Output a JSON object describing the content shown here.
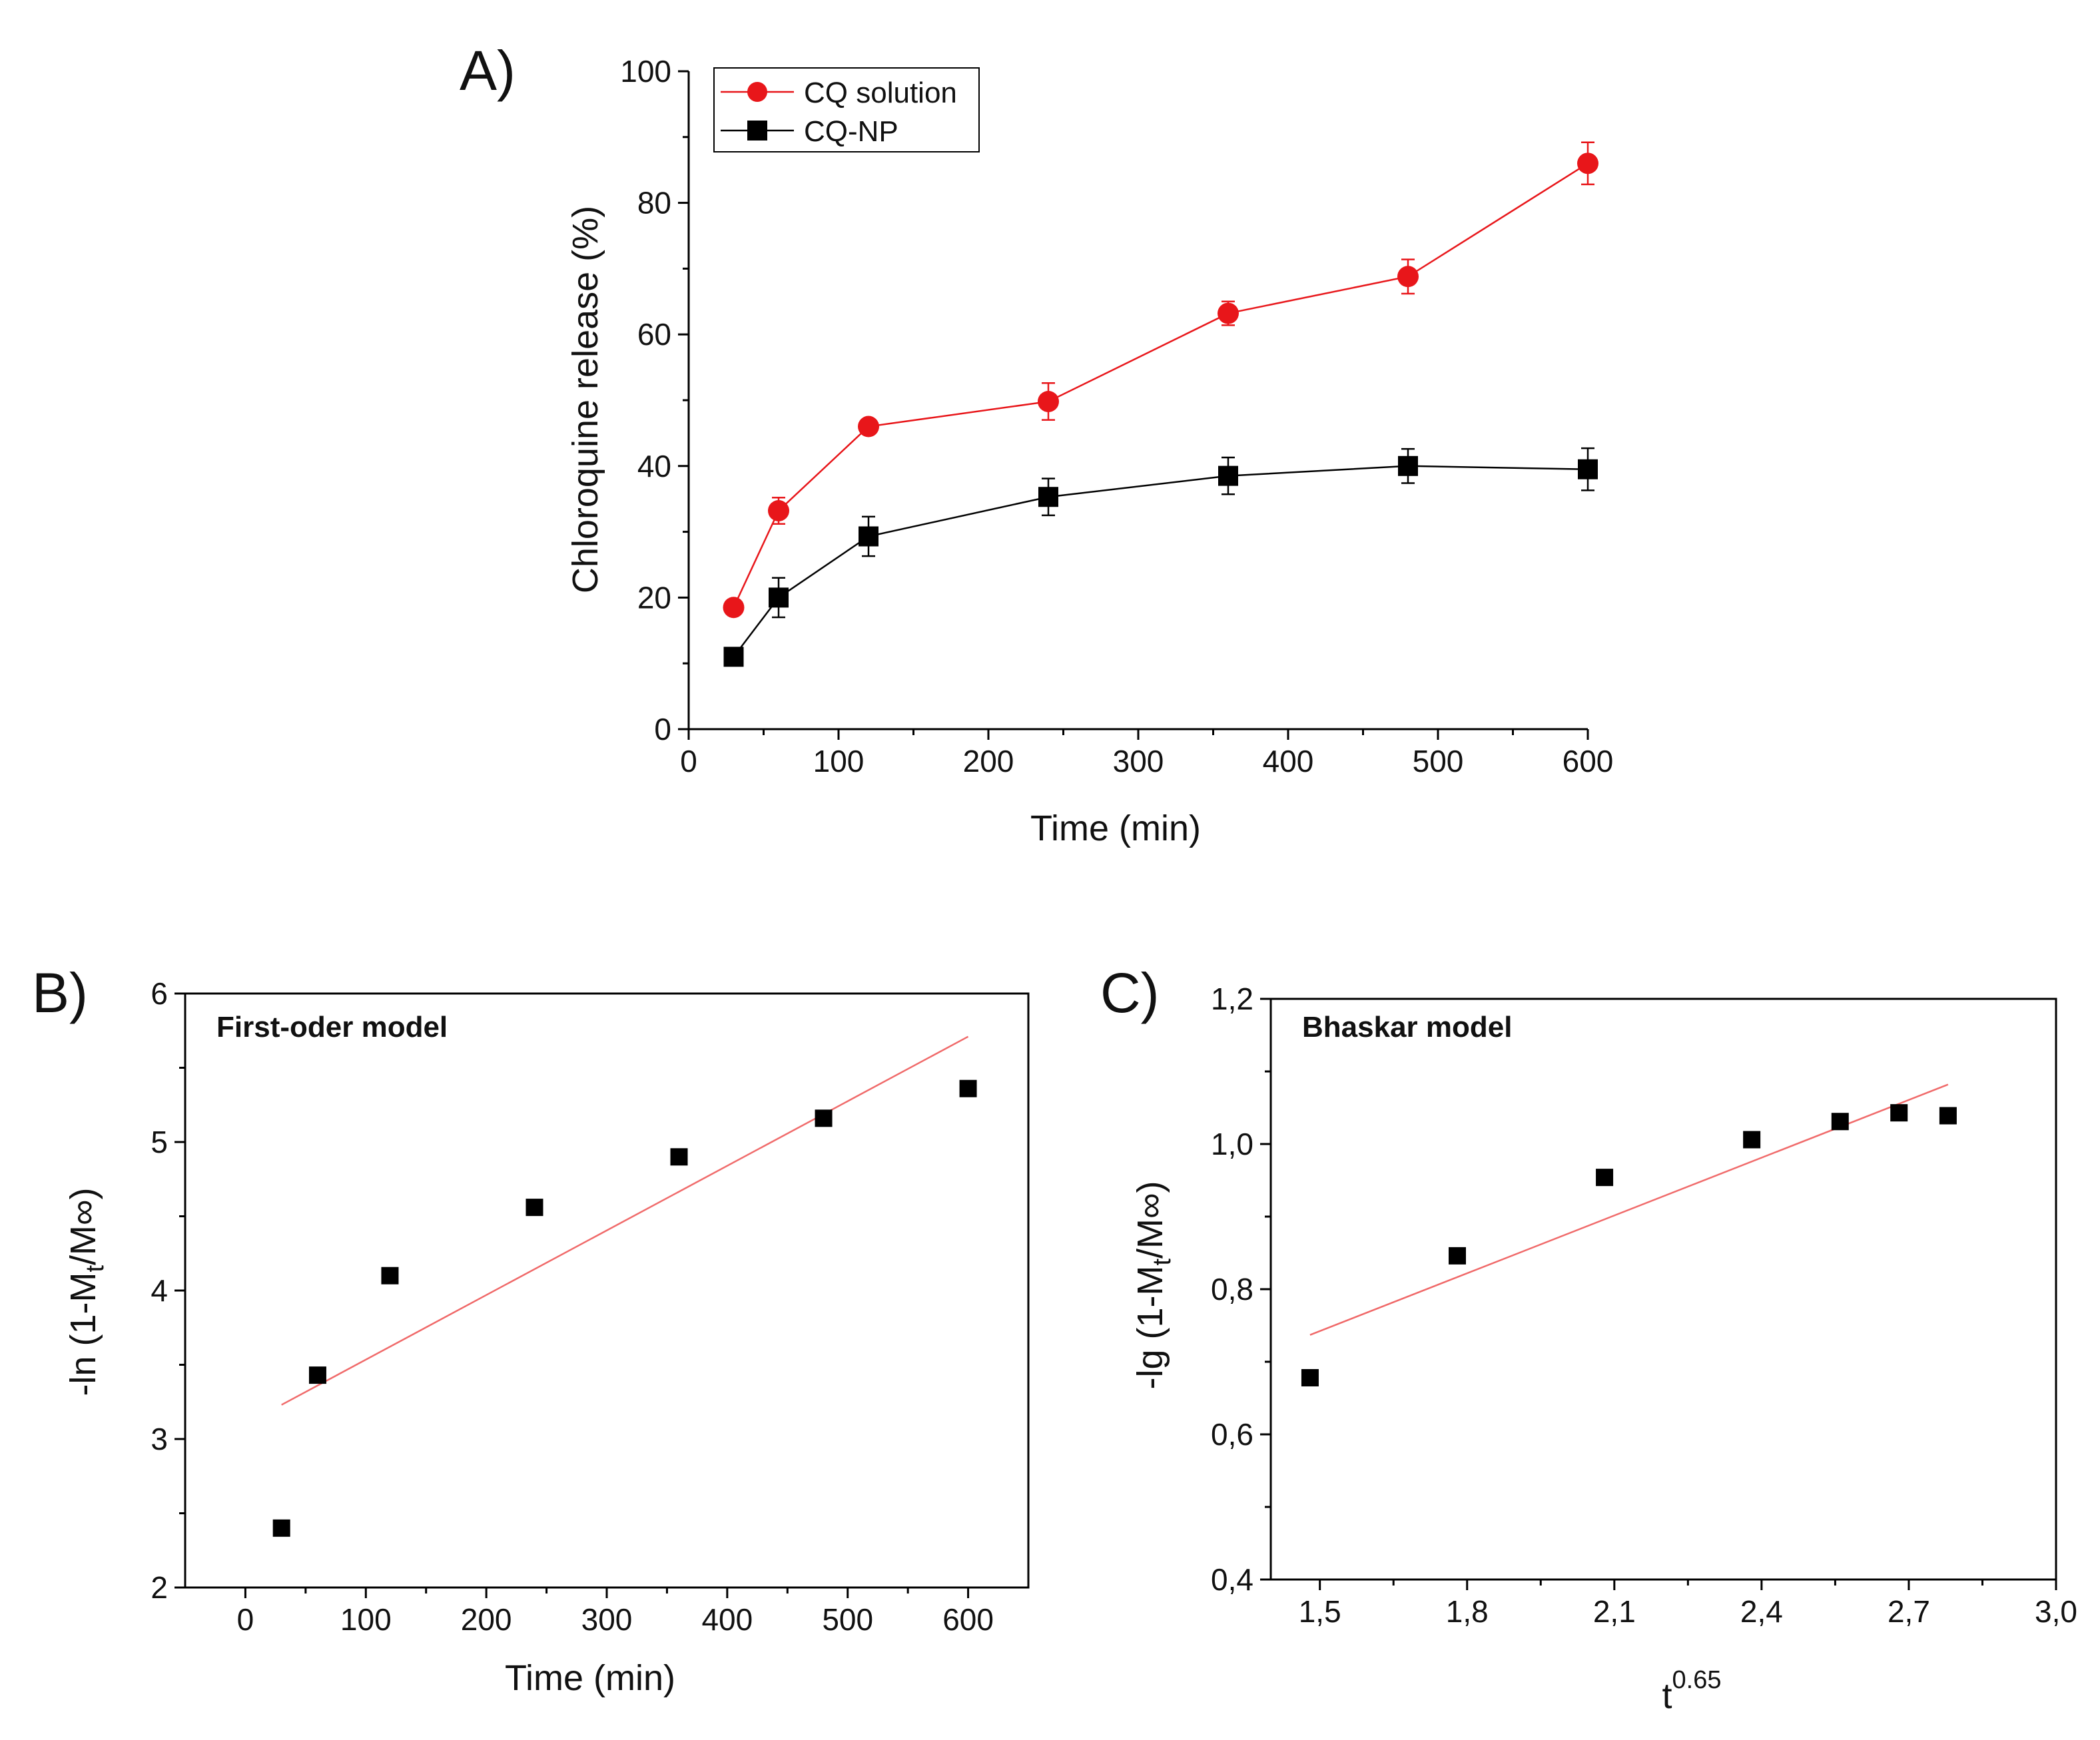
{
  "figure": {
    "panels": [
      "A)",
      "B)",
      "C)"
    ]
  },
  "chart_data": [
    {
      "panel": "A)",
      "type": "line",
      "title": "",
      "xlabel": "Time (min)",
      "ylabel": "Chloroquine release (%)",
      "xlim": [
        0,
        600
      ],
      "ylim": [
        0,
        100
      ],
      "xticks": [
        0,
        100,
        200,
        300,
        400,
        500,
        600
      ],
      "yticks": [
        0,
        20,
        40,
        60,
        80,
        100
      ],
      "xtick_labels": [
        "0",
        "100",
        "200",
        "300",
        "400",
        "500",
        "600"
      ],
      "ytick_labels": [
        "0",
        "20",
        "40",
        "60",
        "80",
        "100"
      ],
      "x": [
        30,
        60,
        120,
        240,
        360,
        480,
        600
      ],
      "legend_position": "top-left",
      "series": [
        {
          "name": "CQ solution",
          "color": "#e8161a",
          "marker": "circle",
          "values": [
            18.5,
            33.2,
            46.0,
            49.8,
            63.2,
            68.8,
            86.0
          ],
          "errors": [
            0.8,
            2.0,
            1.0,
            2.8,
            1.8,
            2.6,
            3.2
          ]
        },
        {
          "name": "CQ-NP",
          "color": "#000000",
          "marker": "square",
          "values": [
            11.0,
            20.0,
            29.3,
            35.3,
            38.5,
            40.0,
            39.5
          ],
          "errors": [
            0.5,
            3.0,
            3.0,
            2.8,
            2.8,
            2.6,
            3.2
          ]
        }
      ]
    },
    {
      "panel": "B)",
      "type": "scatter",
      "title": "First-oder model",
      "xlabel": "Time (min)",
      "ylabel": "-ln (1-Mt/M∞)",
      "xlim": [
        -50,
        650
      ],
      "ylim": [
        2,
        6
      ],
      "xticks": [
        0,
        100,
        200,
        300,
        400,
        500,
        600
      ],
      "yticks": [
        2,
        3,
        4,
        5,
        6
      ],
      "xtick_labels": [
        "0",
        "100",
        "200",
        "300",
        "400",
        "500",
        "600"
      ],
      "ytick_labels": [
        "2",
        "3",
        "4",
        "5",
        "6"
      ],
      "points": {
        "x": [
          30,
          60,
          120,
          240,
          360,
          480,
          600
        ],
        "y": [
          2.4,
          3.43,
          4.1,
          4.56,
          4.9,
          5.16,
          5.36
        ]
      },
      "fit_line": {
        "color": "#f06a6a",
        "x": [
          30,
          600
        ],
        "y": [
          3.23,
          5.71
        ]
      }
    },
    {
      "panel": "C)",
      "type": "scatter",
      "title": "Bhaskar model",
      "xlabel": "t0.65",
      "ylabel": "-lg (1-Mt/M∞)",
      "xlim": [
        1.4,
        3.0
      ],
      "ylim": [
        0.4,
        1.2
      ],
      "xticks": [
        1.5,
        1.8,
        2.1,
        2.4,
        2.7,
        3.0
      ],
      "yticks": [
        0.4,
        0.6,
        0.8,
        1.0,
        1.2
      ],
      "xtick_labels": [
        "1,5",
        "1,8",
        "2,1",
        "2,4",
        "2,7",
        "3,0"
      ],
      "ytick_labels": [
        "0,4",
        "0,6",
        "0,8",
        "1,0",
        "1,2"
      ],
      "points": {
        "x": [
          1.48,
          1.78,
          2.08,
          2.38,
          2.56,
          2.68,
          2.78
        ],
        "y": [
          0.678,
          0.846,
          0.954,
          1.006,
          1.031,
          1.043,
          1.039
        ]
      },
      "fit_line": {
        "color": "#f06a6a",
        "x": [
          1.48,
          2.78
        ],
        "y": [
          0.737,
          1.082
        ]
      }
    }
  ]
}
